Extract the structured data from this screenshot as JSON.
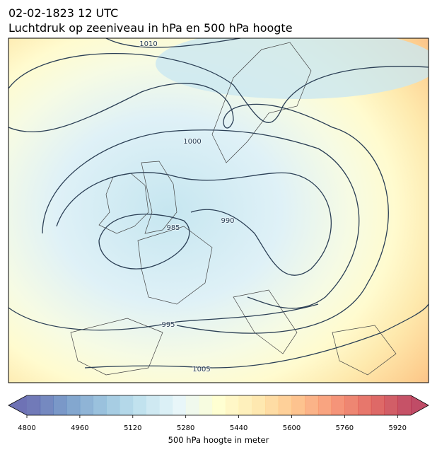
{
  "header": {
    "date": "02-02-1823 12 UTC",
    "title": "Luchtdruk op zeeniveau in hPa en 500 hPa hoogte"
  },
  "map": {
    "isobar_labels": [
      1010,
      1000,
      990,
      985,
      995,
      1005
    ]
  },
  "colorbar": {
    "label": "500 hPa hoogte in meter",
    "lim": [
      4800,
      5960
    ],
    "step": 40,
    "ticks": [
      4800,
      4960,
      5120,
      5280,
      5440,
      5600,
      5760,
      5920
    ],
    "colormap": [
      "#313695",
      "#4575b4",
      "#74add1",
      "#abd9e9",
      "#e0f3f8",
      "#ffffbf",
      "#fee090",
      "#fdae61",
      "#f46d43",
      "#d73027",
      "#a50026"
    ],
    "alpha": 0.7
  }
}
